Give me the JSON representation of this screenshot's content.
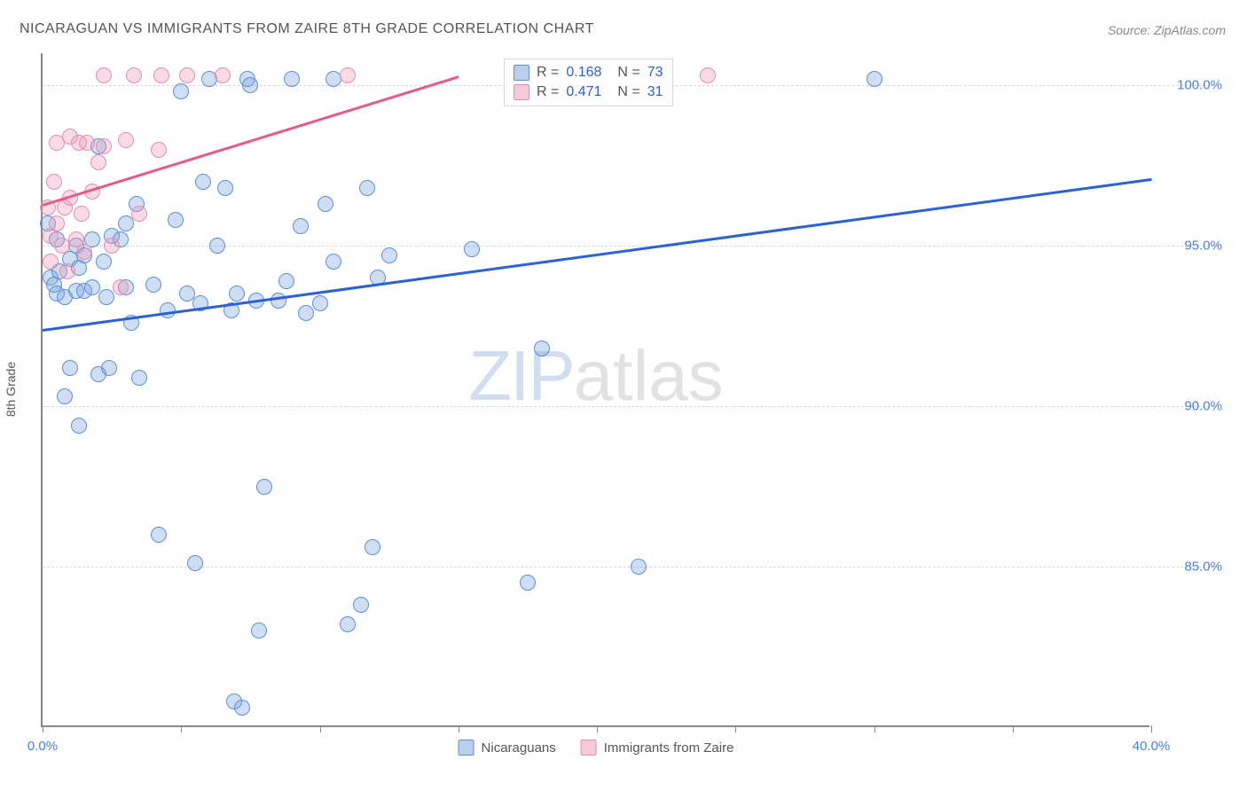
{
  "title": "NICARAGUAN VS IMMIGRANTS FROM ZAIRE 8TH GRADE CORRELATION CHART",
  "source": "Source: ZipAtlas.com",
  "ylabel": "8th Grade",
  "watermark_a": "ZIP",
  "watermark_b": "atlas",
  "chart": {
    "type": "scatter",
    "xlim": [
      0,
      40
    ],
    "ylim": [
      80,
      101
    ],
    "xticks": [
      0,
      5,
      10,
      15,
      20,
      25,
      30,
      35,
      40
    ],
    "xtick_labels": {
      "0": "0.0%",
      "40": "40.0%"
    },
    "yticks": [
      85,
      90,
      95,
      100
    ],
    "ytick_labels": [
      "85.0%",
      "90.0%",
      "95.0%",
      "100.0%"
    ],
    "grid_color": "#d8d8d8",
    "axis_color": "#888888",
    "background_color": "#ffffff",
    "series": [
      {
        "name": "Nicaraguans",
        "color_fill": "rgba(120,160,220,0.35)",
        "color_stroke": "#5b8fd6",
        "trend_color": "#2962d8",
        "r": 0.168,
        "n": 73,
        "trend": {
          "x1": 0,
          "y1": 92.4,
          "x2": 40,
          "y2": 97.1
        },
        "points": [
          [
            0.2,
            95.7
          ],
          [
            0.3,
            94.0
          ],
          [
            0.4,
            93.8
          ],
          [
            0.5,
            95.2
          ],
          [
            0.5,
            93.5
          ],
          [
            0.6,
            94.2
          ],
          [
            0.8,
            90.3
          ],
          [
            0.8,
            93.4
          ],
          [
            1.0,
            94.6
          ],
          [
            1.0,
            91.2
          ],
          [
            1.2,
            95.0
          ],
          [
            1.2,
            93.6
          ],
          [
            1.3,
            89.4
          ],
          [
            1.3,
            94.3
          ],
          [
            1.5,
            94.7
          ],
          [
            1.5,
            93.6
          ],
          [
            1.8,
            93.7
          ],
          [
            1.8,
            95.2
          ],
          [
            2.0,
            91.0
          ],
          [
            2.0,
            98.1
          ],
          [
            2.2,
            94.5
          ],
          [
            2.3,
            93.4
          ],
          [
            2.4,
            91.2
          ],
          [
            2.5,
            95.3
          ],
          [
            2.8,
            95.2
          ],
          [
            3.0,
            93.7
          ],
          [
            3.0,
            95.7
          ],
          [
            3.2,
            92.6
          ],
          [
            3.4,
            96.3
          ],
          [
            3.5,
            90.9
          ],
          [
            4.0,
            93.8
          ],
          [
            4.2,
            86.0
          ],
          [
            4.5,
            93.0
          ],
          [
            4.8,
            95.8
          ],
          [
            5.0,
            99.8
          ],
          [
            5.2,
            93.5
          ],
          [
            5.5,
            85.1
          ],
          [
            5.7,
            93.2
          ],
          [
            5.8,
            97.0
          ],
          [
            6.0,
            100.2
          ],
          [
            6.3,
            95.0
          ],
          [
            6.6,
            96.8
          ],
          [
            6.8,
            93.0
          ],
          [
            6.9,
            80.8
          ],
          [
            7.0,
            93.5
          ],
          [
            7.2,
            80.6
          ],
          [
            7.4,
            100.2
          ],
          [
            7.5,
            100.0
          ],
          [
            7.7,
            93.3
          ],
          [
            7.8,
            83.0
          ],
          [
            8.0,
            87.5
          ],
          [
            8.5,
            93.3
          ],
          [
            8.8,
            93.9
          ],
          [
            9.0,
            100.2
          ],
          [
            9.3,
            95.6
          ],
          [
            9.5,
            92.9
          ],
          [
            10.0,
            93.2
          ],
          [
            10.2,
            96.3
          ],
          [
            10.5,
            94.5
          ],
          [
            10.5,
            100.2
          ],
          [
            11.0,
            83.2
          ],
          [
            11.5,
            83.8
          ],
          [
            11.7,
            96.8
          ],
          [
            11.9,
            85.6
          ],
          [
            12.1,
            94.0
          ],
          [
            12.5,
            94.7
          ],
          [
            15.5,
            94.9
          ],
          [
            17.5,
            84.5
          ],
          [
            18.0,
            91.8
          ],
          [
            20.2,
            100.0
          ],
          [
            21.5,
            85.0
          ],
          [
            22.0,
            100.1
          ],
          [
            30.0,
            100.2
          ]
        ]
      },
      {
        "name": "Immigrants from Zaire",
        "color_fill": "rgba(240,150,180,0.35)",
        "color_stroke": "#e08fb0",
        "trend_color": "#e65a8a",
        "r": 0.471,
        "n": 31,
        "trend": {
          "x1": 0,
          "y1": 96.3,
          "x2": 15,
          "y2": 100.3
        },
        "points": [
          [
            0.2,
            96.2
          ],
          [
            0.3,
            95.3
          ],
          [
            0.3,
            94.5
          ],
          [
            0.4,
            97.0
          ],
          [
            0.5,
            95.7
          ],
          [
            0.5,
            98.2
          ],
          [
            0.7,
            95.0
          ],
          [
            0.8,
            96.2
          ],
          [
            0.9,
            94.2
          ],
          [
            1.0,
            96.5
          ],
          [
            1.0,
            98.4
          ],
          [
            1.2,
            95.2
          ],
          [
            1.3,
            98.2
          ],
          [
            1.4,
            96.0
          ],
          [
            1.5,
            94.8
          ],
          [
            1.6,
            98.2
          ],
          [
            1.8,
            96.7
          ],
          [
            2.0,
            97.6
          ],
          [
            2.2,
            98.1
          ],
          [
            2.2,
            100.3
          ],
          [
            2.5,
            95.0
          ],
          [
            2.8,
            93.7
          ],
          [
            3.0,
            98.3
          ],
          [
            3.3,
            100.3
          ],
          [
            3.5,
            96.0
          ],
          [
            4.2,
            98.0
          ],
          [
            4.3,
            100.3
          ],
          [
            5.2,
            100.3
          ],
          [
            6.5,
            100.3
          ],
          [
            11.0,
            100.3
          ],
          [
            24.0,
            100.3
          ]
        ]
      }
    ],
    "legend": {
      "items": [
        "Nicaraguans",
        "Immigrants from Zaire"
      ]
    },
    "stats_labels": {
      "r": "R =",
      "n": "N ="
    }
  }
}
